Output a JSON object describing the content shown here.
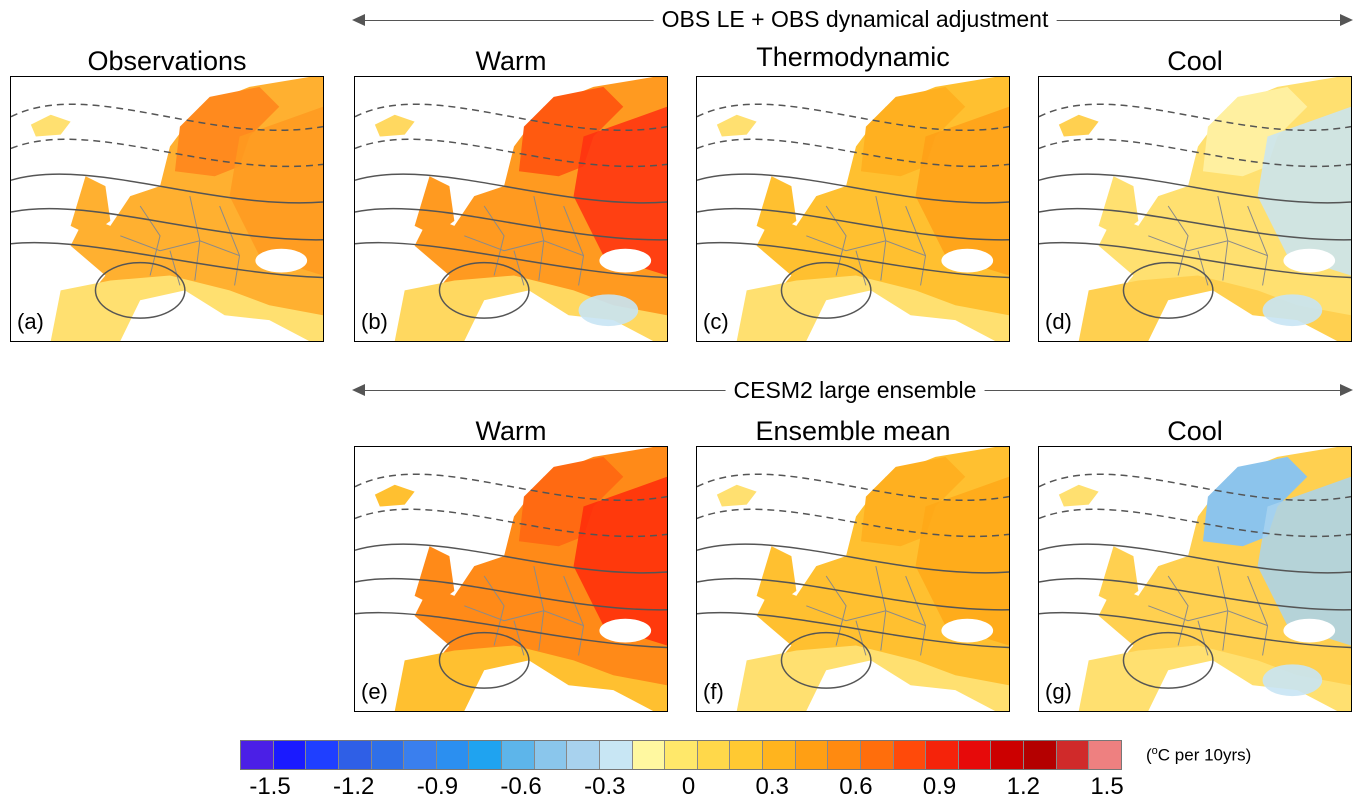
{
  "headers": {
    "obs_le": "OBS LE + OBS dynamical adjustment",
    "cesm2": "CESM2 large ensemble"
  },
  "panels": [
    {
      "id": "a",
      "title": "Observations",
      "label": "(a)",
      "scheme": "obs"
    },
    {
      "id": "b",
      "title": "Warm",
      "label": "(b)",
      "scheme": "warm"
    },
    {
      "id": "c",
      "title": "Thermodynamic",
      "label": "(c)",
      "scheme": "thermo"
    },
    {
      "id": "d",
      "title": "Cool",
      "label": "(d)",
      "scheme": "cool"
    },
    {
      "id": "e",
      "title": "Warm",
      "label": "(e)",
      "scheme": "hot"
    },
    {
      "id": "f",
      "title": "Ensemble mean",
      "label": "(f)",
      "scheme": "mean"
    },
    {
      "id": "g",
      "title": "Cool",
      "label": "(g)",
      "scheme": "cold"
    }
  ],
  "colorbar": {
    "units_prefix": "(",
    "units_sup": "o",
    "units_suffix": "C per 10yrs)",
    "tick_labels": [
      "-1.5",
      "-1.2",
      "-0.9",
      "-0.6",
      "-0.3",
      "0",
      "0.3",
      "0.6",
      "0.9",
      "1.2",
      "1.5"
    ],
    "colors": [
      "#4b1fe6",
      "#1a1aff",
      "#1f3fff",
      "#2f5fe6",
      "#2f6fe8",
      "#3a7fee",
      "#2b8ff0",
      "#1fa3f0",
      "#5db5ea",
      "#8ac6ec",
      "#a8d2ee",
      "#c8e6f4",
      "#fff8a0",
      "#ffe86a",
      "#ffd84a",
      "#ffc932",
      "#ffb41e",
      "#ff9f14",
      "#ff8a10",
      "#ff6e0c",
      "#ff4a0a",
      "#f5230a",
      "#e60a0a",
      "#cc0000",
      "#b40000",
      "#d02a2a",
      "#ee8080"
    ]
  }
}
